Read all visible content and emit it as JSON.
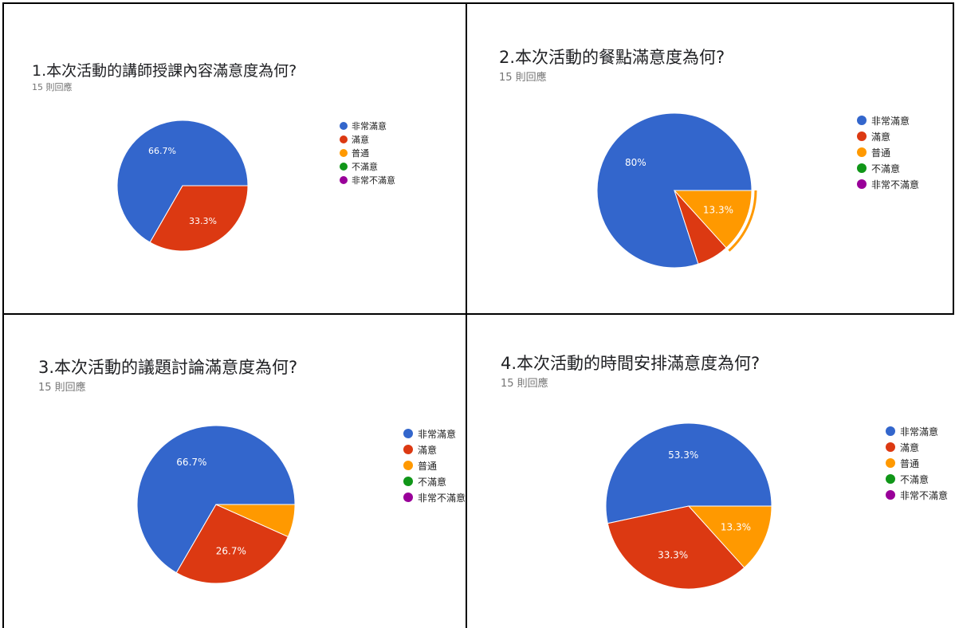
{
  "legend_labels": [
    "非常滿意",
    "滿意",
    "普通",
    "不滿意",
    "非常不滿意"
  ],
  "colors": {
    "非常滿意": "#3366cc",
    "滿意": "#dc3912",
    "普通": "#ff9900",
    "不滿意": "#109618",
    "非常不滿意": "#990099"
  },
  "chart_data": [
    {
      "type": "pie",
      "title": "1.本次活動的講師授課內容滿意度為何?",
      "subtitle": "15 則回應",
      "categories": [
        "非常滿意",
        "滿意",
        "普通",
        "不滿意",
        "非常不滿意"
      ],
      "values": [
        66.7,
        33.3,
        0,
        0,
        0
      ],
      "data_labels": [
        "66.7%",
        "33.3%",
        "",
        "",
        ""
      ],
      "legend_position": "right"
    },
    {
      "type": "pie",
      "title": "2.本次活動的餐點滿意度為何?",
      "subtitle": "15 則回應",
      "categories": [
        "非常滿意",
        "滿意",
        "普通",
        "不滿意",
        "非常不滿意"
      ],
      "values": [
        80,
        6.7,
        13.3,
        0,
        0
      ],
      "data_labels": [
        "80%",
        "",
        "13.3%",
        "",
        ""
      ],
      "highlighted": "普通",
      "legend_position": "right"
    },
    {
      "type": "pie",
      "title": "3.本次活動的議題討論滿意度為何?",
      "subtitle": "15 則回應",
      "categories": [
        "非常滿意",
        "滿意",
        "普通",
        "不滿意",
        "非常不滿意"
      ],
      "values": [
        66.7,
        26.7,
        6.7,
        0,
        0
      ],
      "data_labels": [
        "66.7%",
        "26.7%",
        "",
        "",
        ""
      ],
      "legend_position": "right"
    },
    {
      "type": "pie",
      "title": "4.本次活動的時間安排滿意度為何?",
      "subtitle": "15 則回應",
      "categories": [
        "非常滿意",
        "滿意",
        "普通",
        "不滿意",
        "非常不滿意"
      ],
      "values": [
        53.3,
        33.3,
        13.3,
        0,
        0
      ],
      "data_labels": [
        "53.3%",
        "33.3%",
        "13.3%",
        "",
        ""
      ],
      "legend_position": "right"
    }
  ]
}
